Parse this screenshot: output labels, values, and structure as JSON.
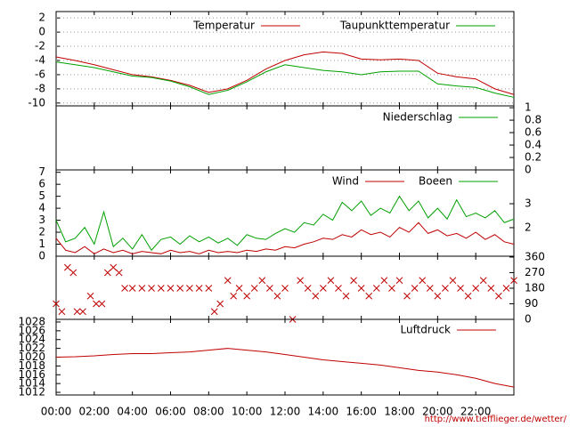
{
  "x_axis": {
    "xlim": [
      0,
      24
    ],
    "xticks": [
      {
        "value": 0,
        "label": "00:00"
      },
      {
        "value": 2,
        "label": "02:00"
      },
      {
        "value": 4,
        "label": "04:00"
      },
      {
        "value": 6,
        "label": "06:00"
      },
      {
        "value": 8,
        "label": "08:00"
      },
      {
        "value": 10,
        "label": "10:00"
      },
      {
        "value": 12,
        "label": "12:00"
      },
      {
        "value": 14,
        "label": "14:00"
      },
      {
        "value": 16,
        "label": "16:00"
      },
      {
        "value": 18,
        "label": "18:00"
      },
      {
        "value": 20,
        "label": "20:00"
      },
      {
        "value": 22,
        "label": "22:00"
      }
    ]
  },
  "footer": "http://www.tiefflieger.de/wetter/",
  "chart_data": [
    {
      "type": "line",
      "grid": true,
      "ylim": [
        -10.4,
        2.9
      ],
      "yticks": [
        2,
        0,
        -2,
        -4,
        -6,
        -8,
        -10
      ],
      "x": [
        0,
        1,
        2,
        3,
        4,
        5,
        6,
        7,
        8,
        9,
        10,
        11,
        12,
        13,
        14,
        15,
        16,
        17,
        18,
        19,
        20,
        21,
        22,
        23,
        24
      ],
      "series": [
        {
          "name": "Temperatur",
          "color": "#c00000",
          "values": [
            -3.5,
            -4,
            -4.6,
            -5.3,
            -6,
            -6.3,
            -6.8,
            -7.5,
            -8.5,
            -8,
            -6.8,
            -5.2,
            -4,
            -3.2,
            -2.8,
            -3,
            -3.8,
            -3.9,
            -3.8,
            -4,
            -5.8,
            -6.3,
            -6.6,
            -8,
            -8.8
          ]
        },
        {
          "name": "Taupunkttemperatur",
          "color": "#00a000",
          "values": [
            -4.2,
            -4.6,
            -5,
            -5.6,
            -6.2,
            -6.4,
            -6.9,
            -7.7,
            -8.8,
            -8.2,
            -7,
            -5.6,
            -4.6,
            -5,
            -5.4,
            -5.6,
            -6,
            -5.6,
            -5.5,
            -5.5,
            -7.3,
            -7.6,
            -7.8,
            -8.6,
            -9.2
          ]
        }
      ]
    },
    {
      "type": "line",
      "grid": false,
      "y2lim": [
        0,
        1.03
      ],
      "y2ticks": [
        1,
        0.8,
        0.6,
        0.4,
        0.2,
        0
      ],
      "x": [
        0,
        24
      ],
      "series": [
        {
          "name": "Niederschlag",
          "color": "#00a000",
          "axis": "y2",
          "values": [
            0,
            0
          ]
        }
      ]
    },
    {
      "type": "line",
      "grid": false,
      "ylim": [
        0,
        7.2
      ],
      "yticks": [
        7,
        6,
        5,
        4,
        3,
        2,
        1,
        0
      ],
      "y2lim": [
        0.81,
        4.41
      ],
      "y2ticks": [
        3,
        2
      ],
      "x": [
        0,
        0.5,
        1,
        1.5,
        2,
        2.5,
        3,
        3.5,
        4,
        4.5,
        5,
        5.5,
        6,
        6.5,
        7,
        7.5,
        8,
        8.5,
        9,
        9.5,
        10,
        10.5,
        11,
        11.5,
        12,
        12.5,
        13,
        13.5,
        14,
        14.5,
        15,
        15.5,
        16,
        16.5,
        17,
        17.5,
        18,
        18.5,
        19,
        19.5,
        20,
        20.5,
        21,
        21.5,
        22,
        22.5,
        23,
        23.5,
        24
      ],
      "series": [
        {
          "name": "Wind",
          "color": "#c00000",
          "values": [
            1.5,
            0.5,
            0.3,
            0.8,
            0.2,
            0.6,
            0.3,
            0.5,
            0.2,
            0.4,
            0.3,
            0.2,
            0.5,
            0.3,
            0.4,
            0.2,
            0.5,
            0.3,
            0.4,
            0.3,
            0.5,
            0.4,
            0.6,
            0.5,
            0.8,
            0.7,
            1.0,
            1.2,
            1.5,
            1.4,
            1.8,
            1.6,
            2.2,
            1.8,
            2.0,
            1.6,
            2.4,
            2.0,
            2.8,
            1.9,
            2.2,
            1.7,
            1.9,
            1.5,
            2.0,
            1.4,
            1.8,
            1.2,
            1.0
          ]
        },
        {
          "name": "Boeen",
          "color": "#00a000",
          "values": [
            3.0,
            1.2,
            1.5,
            2.4,
            1.0,
            3.7,
            0.8,
            1.5,
            0.6,
            1.8,
            0.5,
            1.4,
            1.6,
            1.0,
            1.7,
            1.2,
            1.6,
            1.1,
            1.5,
            0.9,
            1.8,
            1.5,
            1.4,
            1.9,
            2.3,
            2.0,
            2.8,
            2.6,
            3.5,
            3.0,
            4.5,
            3.8,
            4.6,
            3.4,
            4.0,
            3.6,
            5.0,
            3.8,
            4.6,
            3.2,
            4.0,
            3.1,
            4.7,
            3.3,
            3.6,
            3.2,
            3.8,
            2.8,
            3.1
          ]
        }
      ]
    },
    {
      "type": "scatter",
      "grid": false,
      "y2lim": [
        0,
        365
      ],
      "y2ticks": [
        360,
        270,
        180,
        90,
        0
      ],
      "x": [
        0,
        0.3,
        0.6,
        0.9,
        1.1,
        1.4,
        1.8,
        2.1,
        2.4,
        2.7,
        3.0,
        3.3,
        3.6,
        4,
        4.5,
        5,
        5.5,
        6,
        6.5,
        7,
        7.5,
        8,
        8.3,
        8.6,
        9,
        9.3,
        9.6,
        10,
        10.4,
        10.8,
        11.2,
        11.6,
        12,
        12.4,
        12.8,
        13.2,
        13.6,
        14,
        14.4,
        14.8,
        15.2,
        15.6,
        16,
        16.4,
        16.8,
        17.2,
        17.6,
        18,
        18.4,
        18.8,
        19.2,
        19.6,
        20,
        20.4,
        20.8,
        21.2,
        21.6,
        22,
        22.4,
        22.8,
        23.2,
        23.6,
        24
      ],
      "series": [
        {
          "color": "#c00000",
          "axis": "y2",
          "values": [
            90,
            45,
            300,
            270,
            45,
            45,
            135,
            90,
            90,
            270,
            300,
            270,
            180,
            180,
            180,
            180,
            180,
            180,
            180,
            180,
            180,
            180,
            45,
            90,
            225,
            135,
            180,
            135,
            180,
            225,
            180,
            135,
            180,
            0,
            225,
            180,
            135,
            180,
            225,
            180,
            135,
            225,
            180,
            135,
            180,
            225,
            180,
            225,
            135,
            180,
            225,
            180,
            135,
            180,
            225,
            180,
            135,
            180,
            225,
            180,
            135,
            180,
            225
          ]
        }
      ]
    },
    {
      "type": "line",
      "grid": false,
      "ylim": [
        1011.4,
        1028.6
      ],
      "yticks": [
        1028,
        1026,
        1024,
        1022,
        1020,
        1018,
        1016,
        1014,
        1012
      ],
      "x": [
        0,
        1,
        2,
        3,
        4,
        5,
        6,
        7,
        8,
        9,
        10,
        11,
        12,
        13,
        14,
        15,
        16,
        17,
        18,
        19,
        20,
        21,
        22,
        23,
        24
      ],
      "series": [
        {
          "name": "Luftdruck",
          "color": "#c00000",
          "values": [
            1020,
            1020.1,
            1020.3,
            1020.6,
            1020.8,
            1020.8,
            1021,
            1021.2,
            1021.6,
            1022,
            1021.6,
            1021.2,
            1020.6,
            1020,
            1019.4,
            1019,
            1018.6,
            1018.2,
            1017.6,
            1017,
            1016.6,
            1016,
            1015.2,
            1014,
            1013.2
          ]
        }
      ]
    }
  ]
}
